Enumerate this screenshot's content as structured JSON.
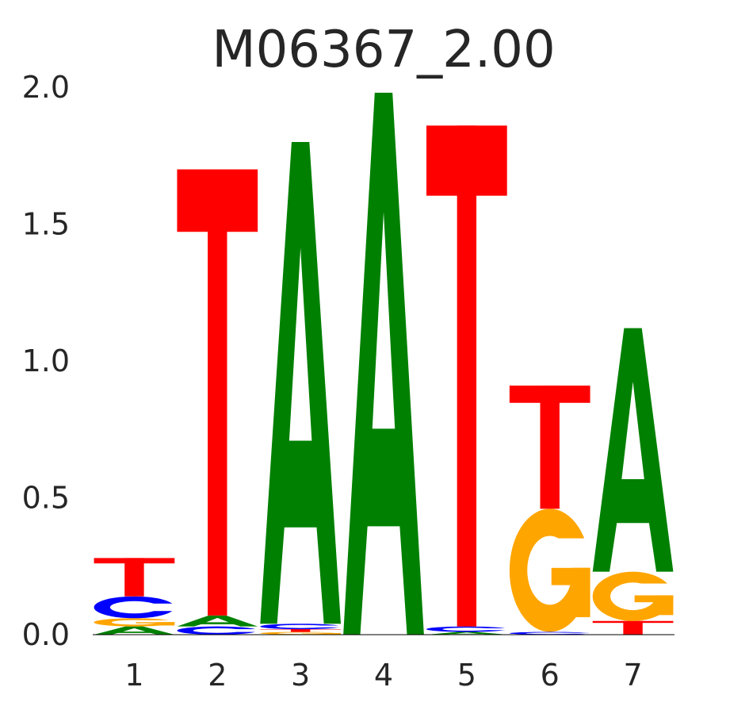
{
  "chart_data": {
    "type": "sequence-logo",
    "title": "M06367_2.00",
    "xlabel": "",
    "ylabel": "",
    "ylim": [
      0,
      2.0
    ],
    "yticks": [
      "0.0",
      "0.5",
      "1.0",
      "1.5",
      "2.0"
    ],
    "positions": [
      "1",
      "2",
      "3",
      "4",
      "5",
      "6",
      "7"
    ],
    "grid": false,
    "colors": {
      "A": "#008000",
      "C": "#0000ff",
      "G": "#ffa500",
      "T": "#ff0000"
    },
    "stacks": [
      [
        {
          "letter": "A",
          "height": 0.03
        },
        {
          "letter": "G",
          "height": 0.03
        },
        {
          "letter": "C",
          "height": 0.08
        },
        {
          "letter": "T",
          "height": 0.14
        }
      ],
      [
        {
          "letter": "C",
          "height": 0.03
        },
        {
          "letter": "A",
          "height": 0.04
        },
        {
          "letter": "T",
          "height": 1.63
        }
      ],
      [
        {
          "letter": "G",
          "height": 0.01
        },
        {
          "letter": "T",
          "height": 0.01
        },
        {
          "letter": "C",
          "height": 0.02
        },
        {
          "letter": "A",
          "height": 1.76
        }
      ],
      [
        {
          "letter": "A",
          "height": 1.98
        }
      ],
      [
        {
          "letter": "A",
          "height": 0.01
        },
        {
          "letter": "C",
          "height": 0.02
        },
        {
          "letter": "T",
          "height": 1.83
        }
      ],
      [
        {
          "letter": "C",
          "height": 0.01
        },
        {
          "letter": "G",
          "height": 0.45
        },
        {
          "letter": "T",
          "height": 0.45
        }
      ],
      [
        {
          "letter": "T",
          "height": 0.05
        },
        {
          "letter": "G",
          "height": 0.18
        },
        {
          "letter": "A",
          "height": 0.89
        }
      ]
    ]
  }
}
